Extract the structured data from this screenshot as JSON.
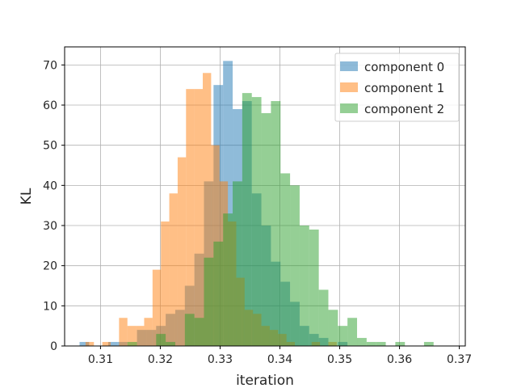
{
  "chart_data": {
    "type": "histogram",
    "title": "",
    "xlabel": "iteration",
    "ylabel": "KL",
    "xlim": [
      0.304,
      0.371
    ],
    "ylim": [
      0,
      74.5
    ],
    "x_ticks": [
      0.31,
      0.32,
      0.33,
      0.34,
      0.35,
      0.36,
      0.37
    ],
    "x_tick_labels": [
      "0.31",
      "0.32",
      "0.33",
      "0.34",
      "0.35",
      "0.36",
      "0.37"
    ],
    "y_ticks": [
      0,
      10,
      20,
      30,
      40,
      50,
      60,
      70
    ],
    "y_tick_labels": [
      "0",
      "10",
      "20",
      "30",
      "40",
      "50",
      "60",
      "70"
    ],
    "grid": true,
    "legend_position": "top-right",
    "alpha": 0.5,
    "series": [
      {
        "name": "component 0",
        "color": "#1f77b4",
        "bin_edges": [
          0.3065,
          0.3081,
          0.3097,
          0.3113,
          0.3129,
          0.3145,
          0.3161,
          0.3177,
          0.3193,
          0.3209,
          0.3225,
          0.3241,
          0.3257,
          0.3273,
          0.3289,
          0.3305,
          0.3321,
          0.3337,
          0.3353,
          0.3369,
          0.3385,
          0.3401,
          0.3417,
          0.3433,
          0.3449,
          0.3465,
          0.3481,
          0.3497,
          0.3513
        ],
        "counts": [
          1,
          0,
          0,
          1,
          1,
          0,
          4,
          4,
          5,
          8,
          9,
          15,
          23,
          41,
          65,
          71,
          59,
          61,
          38,
          30,
          21,
          16,
          11,
          5,
          3,
          2,
          0,
          1
        ]
      },
      {
        "name": "component 1",
        "color": "#ff7f0e",
        "bin_edges": [
          0.3075,
          0.3089,
          0.3103,
          0.3117,
          0.3131,
          0.3145,
          0.3159,
          0.3173,
          0.3187,
          0.3201,
          0.3215,
          0.3229,
          0.3243,
          0.3257,
          0.3271,
          0.3285,
          0.3299,
          0.3313,
          0.3327,
          0.3341,
          0.3355,
          0.3369,
          0.3383,
          0.3397,
          0.3411,
          0.3425,
          0.3439,
          0.3453,
          0.3467,
          0.3481,
          0.3495
        ],
        "counts": [
          1,
          0,
          1,
          0,
          7,
          5,
          5,
          7,
          19,
          31,
          38,
          47,
          64,
          64,
          68,
          50,
          41,
          31,
          17,
          9,
          8,
          5,
          4,
          3,
          1,
          0,
          0,
          1,
          0,
          1
        ]
      },
      {
        "name": "component 2",
        "color": "#2ca02c",
        "bin_edges": [
          0.3145,
          0.3161,
          0.3177,
          0.3193,
          0.3209,
          0.3225,
          0.3241,
          0.3257,
          0.3273,
          0.3289,
          0.3305,
          0.3321,
          0.3337,
          0.3353,
          0.3369,
          0.3385,
          0.3401,
          0.3417,
          0.3433,
          0.3449,
          0.3465,
          0.3481,
          0.3497,
          0.3513,
          0.3529,
          0.3545,
          0.3561,
          0.3577,
          0.3593,
          0.3609,
          0.3625,
          0.3641,
          0.3657,
          0.3673
        ],
        "counts": [
          1,
          0,
          0,
          3,
          1,
          0,
          8,
          7,
          22,
          26,
          33,
          41,
          63,
          62,
          58,
          61,
          43,
          40,
          30,
          29,
          14,
          9,
          5,
          7,
          2,
          1,
          1,
          0,
          1,
          0,
          0,
          1,
          0
        ]
      }
    ]
  }
}
